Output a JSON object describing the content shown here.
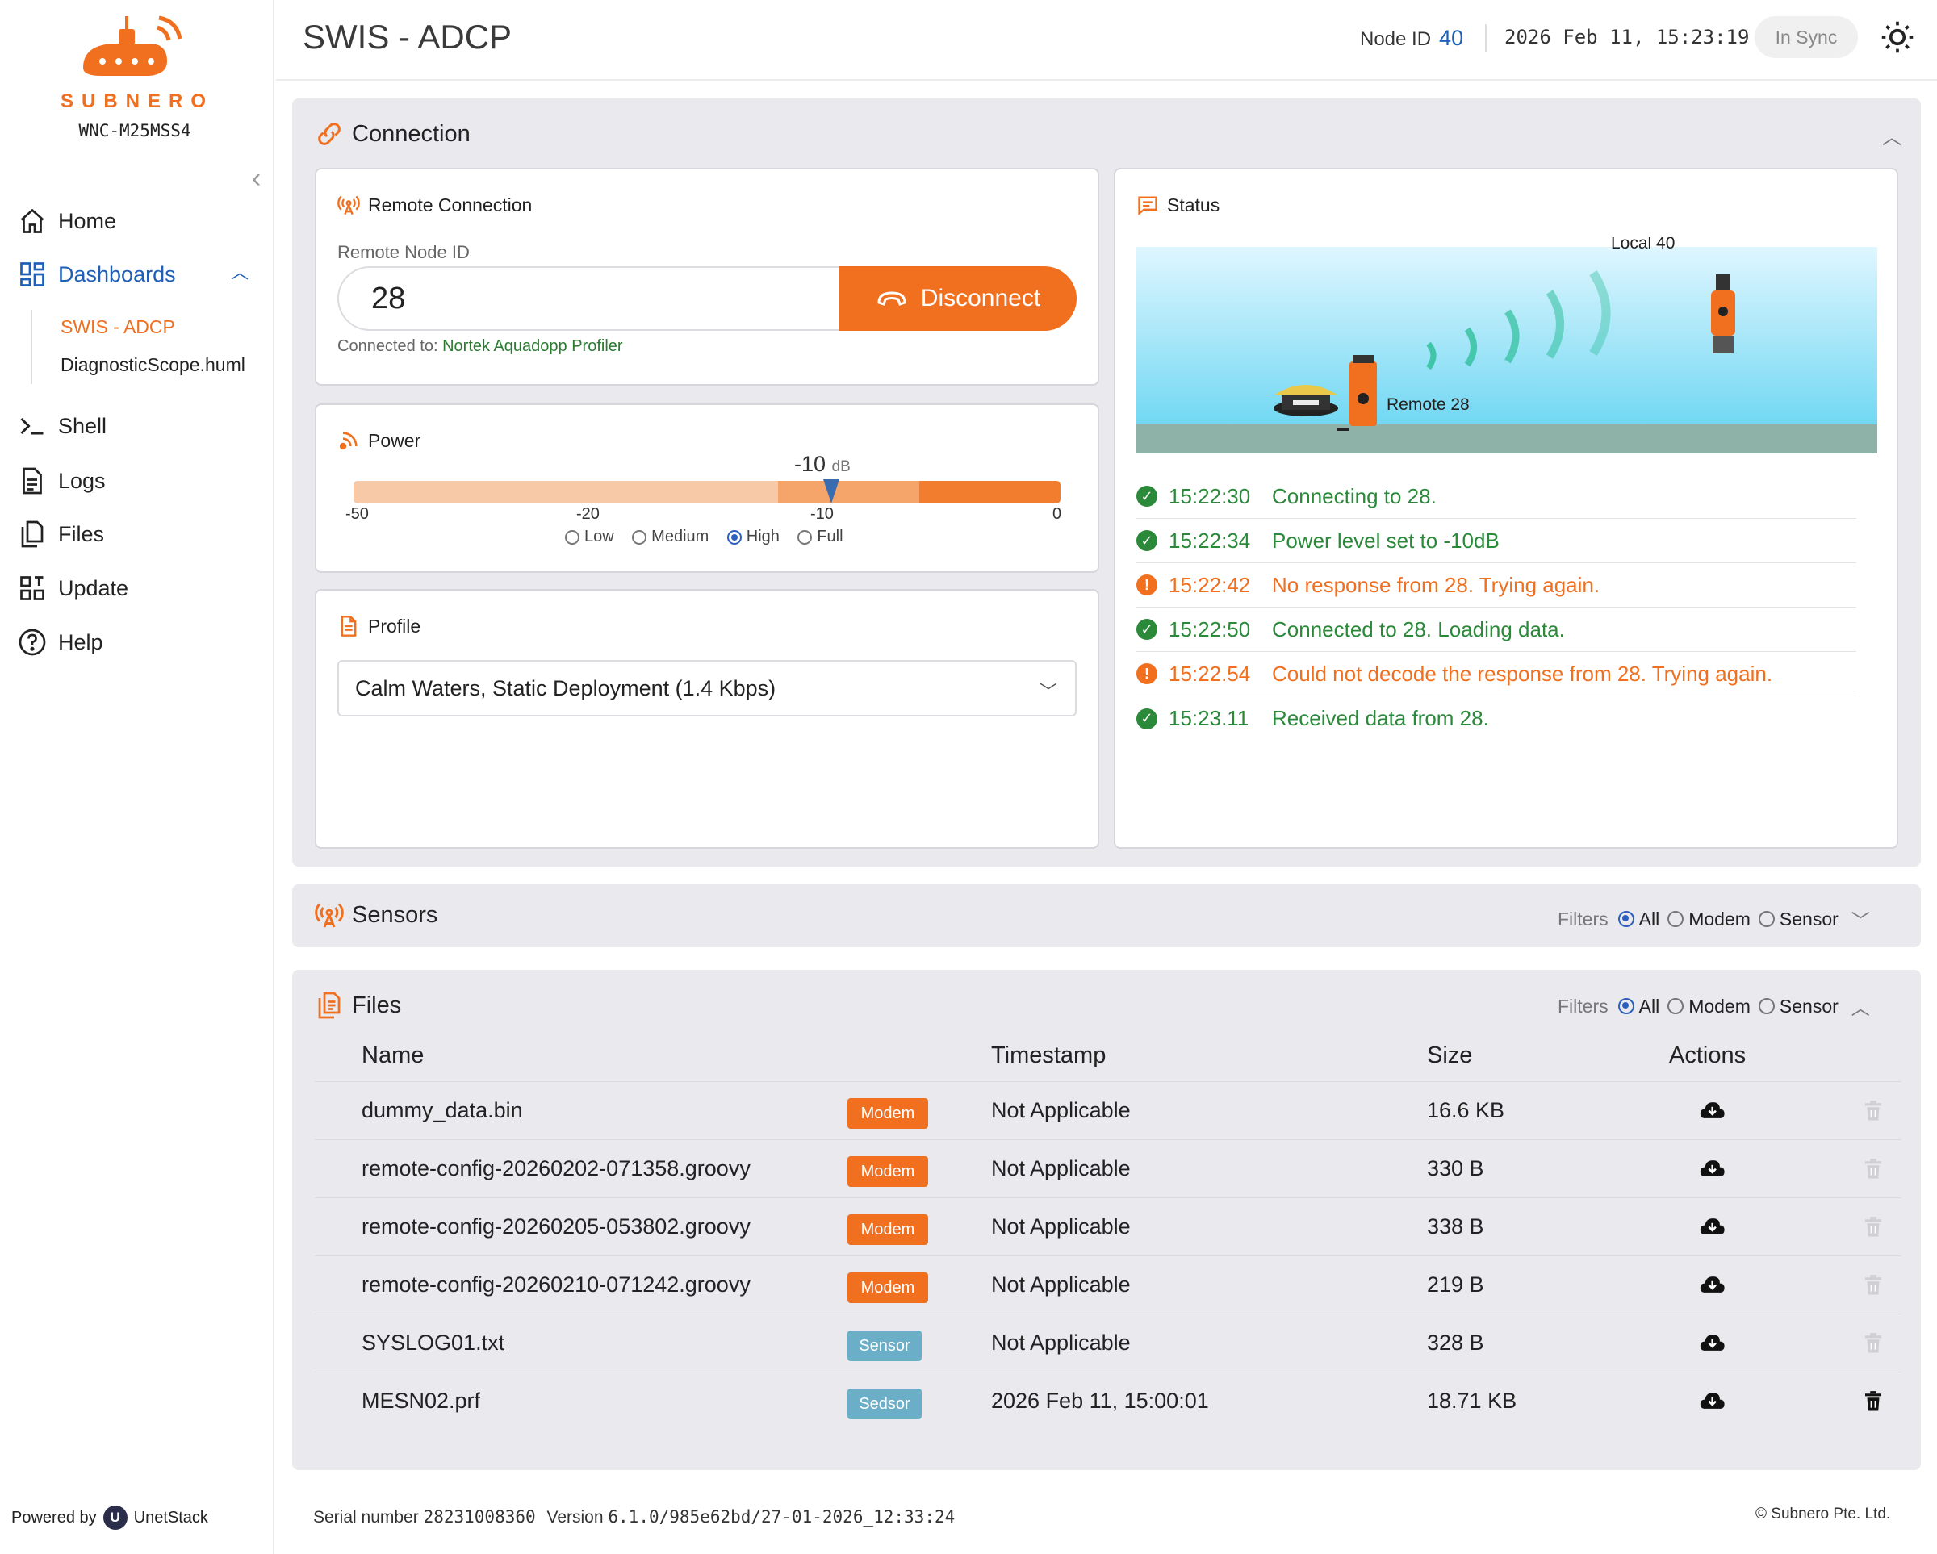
{
  "app": {
    "brand": "SUBNERO",
    "device": "WNC-M25MSS4",
    "page_title": "SWIS - ADCP",
    "node_id_label": "Node ID",
    "node_id": "40",
    "datetime": "2026 Feb 11, 15:23:19",
    "sync_status": "In Sync"
  },
  "sidebar": {
    "items": [
      {
        "label": "Home",
        "icon": "home-icon"
      },
      {
        "label": "Dashboards",
        "icon": "dashboard-icon"
      },
      {
        "label": "Shell",
        "icon": "terminal-icon"
      },
      {
        "label": "Logs",
        "icon": "document-icon"
      },
      {
        "label": "Files",
        "icon": "files-icon"
      },
      {
        "label": "Update",
        "icon": "update-icon"
      },
      {
        "label": "Help",
        "icon": "help-icon"
      }
    ],
    "sub_items": [
      {
        "label": "SWIS - ADCP",
        "active": true
      },
      {
        "label": "DiagnosticScope.huml",
        "active": false
      }
    ],
    "powered_by": "Powered by",
    "powered_brand": "UnetStack",
    "powered_icon_letter": "U"
  },
  "connection": {
    "title": "Connection",
    "remote": {
      "title": "Remote Connection",
      "node_label": "Remote Node ID",
      "node_value": "28",
      "button": "Disconnect",
      "connected_prefix": "Connected to:",
      "connected_to": "Nortek Aquadopp Profiler"
    },
    "power": {
      "title": "Power",
      "value": "-10",
      "unit": "dB",
      "level": -10,
      "min": -50,
      "max": 0,
      "ticks": [
        "-50",
        "-20",
        "-10",
        "0"
      ],
      "options": [
        "Low",
        "Medium",
        "High",
        "Full"
      ],
      "selected": "High"
    },
    "profile": {
      "title": "Profile",
      "selected": "Calm Waters, Static Deployment (1.4 Kbps)"
    },
    "status": {
      "title": "Status",
      "local_label": "Local 40",
      "remote_label": "Remote 28",
      "events": [
        {
          "time": "15:22:30",
          "text": "Connecting to 28.",
          "kind": "ok"
        },
        {
          "time": "15:22:34",
          "text": "Power level set to -10dB",
          "kind": "ok"
        },
        {
          "time": "15:22:42",
          "text": "No response from 28. Trying again.",
          "kind": "warn"
        },
        {
          "time": "15:22:50",
          "text": "Connected to 28. Loading data.",
          "kind": "ok"
        },
        {
          "time": "15:22.54",
          "text": "Could not decode the response from 28. Trying again.",
          "kind": "warn"
        },
        {
          "time": "15:23.11",
          "text": "Received data from 28.",
          "kind": "ok"
        }
      ]
    }
  },
  "sensors": {
    "title": "Sensors",
    "filters_label": "Filters",
    "filters": [
      "All",
      "Modem",
      "Sensor"
    ],
    "selected": "All"
  },
  "files": {
    "title": "Files",
    "filters_label": "Filters",
    "filters": [
      "All",
      "Modem",
      "Sensor"
    ],
    "selected": "All",
    "columns": [
      "Name",
      "Timestamp",
      "Size",
      "Actions"
    ],
    "rows": [
      {
        "name": "dummy_data.bin",
        "tag": "Modem",
        "timestamp": "Not Applicable",
        "size": "16.6 KB",
        "deletable": false
      },
      {
        "name": "remote-config-20260202-071358.groovy",
        "tag": "Modem",
        "timestamp": "Not Applicable",
        "size": "330 B",
        "deletable": false
      },
      {
        "name": "remote-config-20260205-053802.groovy",
        "tag": "Modem",
        "timestamp": "Not Applicable",
        "size": "338 B",
        "deletable": false
      },
      {
        "name": "remote-config-20260210-071242.groovy",
        "tag": "Modem",
        "timestamp": "Not Applicable",
        "size": "219 B",
        "deletable": false
      },
      {
        "name": "SYSLOG01.txt",
        "tag": "Sensor",
        "timestamp": "Not Applicable",
        "size": "328 B",
        "deletable": false
      },
      {
        "name": "MESN02.prf",
        "tag": "Sedsor",
        "timestamp": "2026 Feb 11, 15:00:01",
        "size": "18.71 KB",
        "deletable": true
      }
    ]
  },
  "footer": {
    "serial_label": "Serial number",
    "serial": "28231008360",
    "version_label": "Version",
    "version": "6.1.0/985e62bd/27-01-2026_12:33:24",
    "copyright": "© Subnero Pte. Ltd."
  },
  "colors": {
    "accent": "#f07020",
    "blue": "#1e5fb8",
    "ok": "#2a8a3a",
    "warn": "#f07020",
    "modem_badge": "#f07020",
    "sensor_badge": "#6aaec8"
  }
}
